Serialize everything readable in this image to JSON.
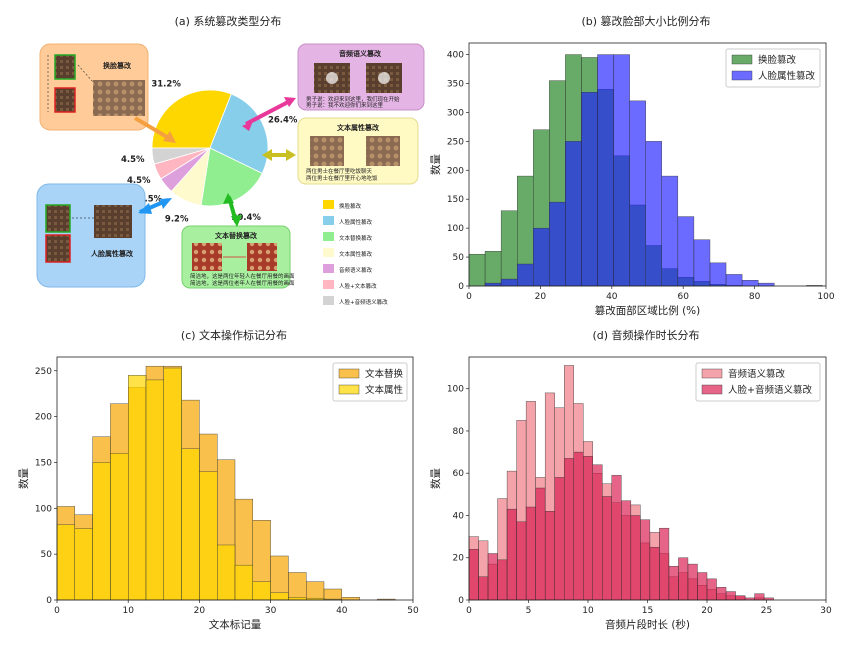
{
  "chart_data": [
    {
      "id": "a",
      "type": "pie",
      "title": "(a)  系统篡改类型分布",
      "slices": [
        {
          "label": "换脸篡改",
          "value": 31.2,
          "pct": "31.2%",
          "color": "#FFD700",
          "pct_color": "#E2B800"
        },
        {
          "label": "人脸属性篡改",
          "value": 26.4,
          "pct": "26.4%",
          "color": "#87CEEB",
          "pct_color": "#6BAED6"
        },
        {
          "label": "文本替换篡改",
          "value": 20.4,
          "pct": "20.4%",
          "color": "#90EE90",
          "pct_color": "#7DCB6E"
        },
        {
          "label": "文本属性篡改",
          "value": 9.2,
          "pct": "9.2%",
          "color": "#FFFACD",
          "pct_color": "#C8C040"
        },
        {
          "label": "音频语义篡改",
          "value": 4.5,
          "pct": "4.5%",
          "color": "#DDA0DD",
          "pct_color": "#D79AD7"
        },
        {
          "label": "人脸+文本篡改",
          "value": 4.5,
          "pct": "4.5%",
          "color": "#FFB6C1",
          "pct_color": "#F4A6B6"
        },
        {
          "label": "人脸+音频语义篡改",
          "value": 4.5,
          "pct": "4.5%",
          "color": "#D3D3D3",
          "pct_color": "#BBBBBB"
        }
      ],
      "callouts": [
        {
          "key": "face_swap",
          "title": "换脸篡改",
          "bg": "#FFCC99",
          "border": "#F0B070",
          "title_color": "#E06010",
          "arrow_color": "#F5A040"
        },
        {
          "key": "face_attr",
          "title": "人脸属性篡改",
          "bg": "#A9D4F7",
          "border": "#80B8E8",
          "title_color": "#1E6FD0",
          "arrow_color": "#2196F3"
        },
        {
          "key": "text_swap",
          "title": "文本替换篡改",
          "bg": "#A8F0A0",
          "border": "#78D070",
          "title_color": "#1A9A1A",
          "arrow_color": "#22BB22",
          "captions": [
            "简洁地，这是两位年轻人在餐厅用餐的画面",
            "简洁地，这是两位老年人在餐厅用餐的画面"
          ]
        },
        {
          "key": "text_attr",
          "title": "文本属性篡改",
          "bg": "#FFF9C4",
          "border": "#E6DC8C",
          "title_color": "#C8A800",
          "arrow_color": "#C8C020",
          "captions": [
            "两位男士在餐厅里吃饭聊天",
            "两位男士在餐厅里开心地吃饭"
          ]
        },
        {
          "key": "audio",
          "title": "音频语义篡改",
          "bg": "#E4B4E4",
          "border": "#C890C8",
          "title_color": "#C83CA8",
          "arrow_color": "#E8389A",
          "captions": [
            "男子说：欢迎来到这里，我们现在开始",
            "男子说：我不欢迎你们来到这里"
          ]
        }
      ]
    },
    {
      "id": "b",
      "type": "histogram",
      "title": "(b)  篡改脸部大小比例分布",
      "xlabel": "篡改面部区域比例 (%)",
      "ylabel": "数量",
      "xlim": [
        0,
        100
      ],
      "ylim": [
        0,
        420
      ],
      "xticks": [
        0,
        20,
        40,
        60,
        80,
        100
      ],
      "yticks": [
        0,
        50,
        100,
        150,
        200,
        250,
        300,
        350,
        400
      ],
      "bin_edges": [
        0,
        4.5,
        9,
        13.5,
        18,
        22.5,
        27,
        31.5,
        36,
        40.5,
        45,
        49.5,
        54,
        58.5,
        63,
        67.5,
        72,
        76.5,
        81,
        85.5,
        90,
        94.5,
        99
      ],
      "legend": "top-right",
      "series": [
        {
          "name": "换脸篡改",
          "color": "#2E8B2E",
          "opacity": 0.72,
          "values": [
            55,
            60,
            130,
            190,
            270,
            355,
            400,
            395,
            340,
            225,
            140,
            70,
            30,
            15,
            8,
            3,
            1,
            0,
            0,
            0,
            0,
            1
          ]
        },
        {
          "name": "人脸属性篡改",
          "color": "#1C1CFF",
          "opacity": 0.65,
          "values": [
            0,
            5,
            12,
            38,
            100,
            145,
            250,
            335,
            400,
            400,
            320,
            250,
            190,
            120,
            80,
            40,
            20,
            10,
            5,
            0,
            0,
            0
          ]
        }
      ]
    },
    {
      "id": "c",
      "type": "histogram",
      "title": "(c)  文本操作标记分布",
      "xlabel": "文本标记量",
      "ylabel": "数量",
      "xlim": [
        0,
        50
      ],
      "ylim": [
        0,
        265
      ],
      "xticks": [
        0,
        10,
        20,
        30,
        40,
        50
      ],
      "yticks": [
        0,
        50,
        100,
        150,
        200,
        250
      ],
      "bin_edges": [
        0,
        2.5,
        5,
        7.5,
        10,
        12.5,
        15,
        17.5,
        20,
        22.5,
        25,
        27.5,
        30,
        32.5,
        35,
        37.5,
        40,
        42.5,
        45,
        47.5,
        50
      ],
      "legend": "top-right",
      "series": [
        {
          "name": "文本替换",
          "color": "#F7A600",
          "opacity": 0.7,
          "values": [
            102,
            93,
            178,
            214,
            232,
            255,
            255,
            218,
            181,
            153,
            110,
            87,
            48,
            30,
            20,
            12,
            3,
            0,
            1,
            0
          ]
        },
        {
          "name": "文本属性",
          "color": "#FFD700",
          "opacity": 0.72,
          "values": [
            82,
            78,
            150,
            160,
            245,
            240,
            253,
            165,
            140,
            60,
            38,
            20,
            8,
            3,
            2,
            1,
            0,
            0,
            0,
            0
          ]
        }
      ]
    },
    {
      "id": "d",
      "type": "histogram",
      "title": "(d)  音频操作时长分布",
      "xlabel": "音频片段时长 (秒)",
      "ylabel": "数量",
      "xlim": [
        0,
        30
      ],
      "ylim": [
        0,
        115
      ],
      "xticks": [
        0,
        5,
        10,
        15,
        20,
        25,
        30
      ],
      "yticks": [
        0,
        20,
        40,
        60,
        80,
        100
      ],
      "bin_edges": [
        0,
        0.8,
        1.6,
        2.4,
        3.2,
        4.0,
        4.8,
        5.6,
        6.4,
        7.2,
        8.0,
        8.8,
        9.6,
        10.4,
        11.2,
        12.0,
        12.8,
        13.6,
        14.4,
        15.2,
        16.0,
        16.8,
        17.6,
        18.4,
        19.2,
        20.0,
        20.8,
        21.6,
        22.4,
        23.2,
        24.0,
        24.8,
        25.6
      ],
      "legend": "top-right",
      "series": [
        {
          "name": "音频语义篡改",
          "color": "#EE8088",
          "opacity": 0.72,
          "values": [
            30,
            28,
            17,
            48,
            61,
            85,
            94,
            58,
            98,
            91,
            111,
            93,
            75,
            60,
            55,
            46,
            40,
            45,
            27,
            32,
            22,
            11,
            13,
            10,
            7,
            5,
            3,
            2,
            2,
            0,
            1,
            0
          ]
        },
        {
          "name": "人脸+音频语义篡改",
          "color": "#D81B50",
          "opacity": 0.68,
          "values": [
            24,
            11,
            22,
            19,
            43,
            37,
            44,
            53,
            42,
            58,
            67,
            70,
            68,
            64,
            49,
            59,
            47,
            40,
            38,
            25,
            34,
            16,
            20,
            17,
            13,
            10,
            6,
            4,
            2,
            1,
            3,
            1
          ]
        }
      ]
    }
  ]
}
